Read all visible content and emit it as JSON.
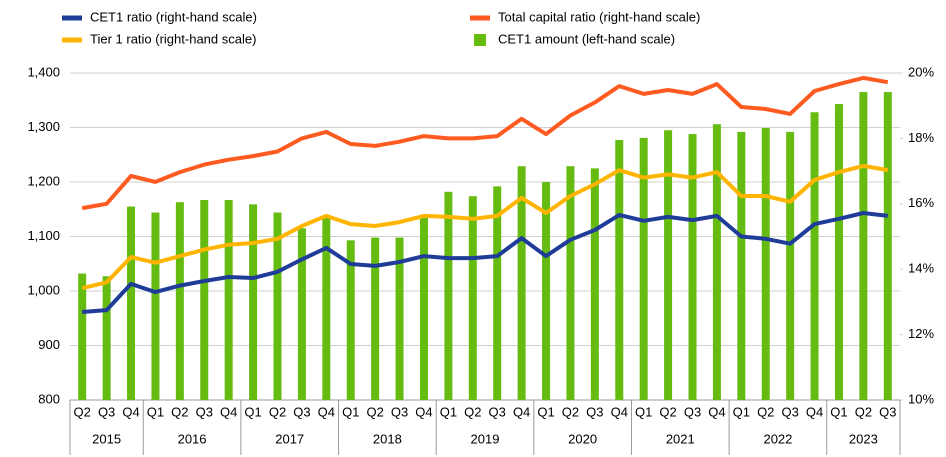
{
  "chart_data": {
    "type": "bar_line",
    "categories": [
      "Q2",
      "Q3",
      "Q4",
      "Q1",
      "Q2",
      "Q3",
      "Q4",
      "Q1",
      "Q2",
      "Q3",
      "Q4",
      "Q1",
      "Q2",
      "Q3",
      "Q4",
      "Q1",
      "Q2",
      "Q3",
      "Q4",
      "Q1",
      "Q2",
      "Q3",
      "Q4",
      "Q1",
      "Q2",
      "Q3",
      "Q4",
      "Q1",
      "Q2",
      "Q3",
      "Q4",
      "Q1",
      "Q2",
      "Q3"
    ],
    "years": [
      "2015",
      "2016",
      "2017",
      "2018",
      "2019",
      "2020",
      "2021",
      "2022",
      "2023"
    ],
    "series": [
      {
        "name": "CET1 ratio (right-hand scale)",
        "type": "line",
        "axis": "y2",
        "color": "#1f3c99",
        "values": [
          12.69,
          12.75,
          13.55,
          13.3,
          13.5,
          13.64,
          13.76,
          13.73,
          13.92,
          14.3,
          14.65,
          14.16,
          14.1,
          14.22,
          14.4,
          14.34,
          14.34,
          14.4,
          14.95,
          14.4,
          14.9,
          15.2,
          15.66,
          15.48,
          15.6,
          15.5,
          15.63,
          15.0,
          14.93,
          14.78,
          15.38,
          15.54,
          15.72,
          15.63
        ]
      },
      {
        "name": "Total capital ratio (right-hand scale)",
        "type": "line",
        "axis": "y2",
        "color": "#ff5a1f",
        "values": [
          15.87,
          16.0,
          16.85,
          16.67,
          16.97,
          17.2,
          17.35,
          17.46,
          17.6,
          18.0,
          18.2,
          17.83,
          17.77,
          17.9,
          18.07,
          18.0,
          18.0,
          18.07,
          18.6,
          18.13,
          18.7,
          19.1,
          19.6,
          19.36,
          19.48,
          19.36,
          19.66,
          18.96,
          18.9,
          18.75,
          19.45,
          19.66,
          19.85,
          19.72
        ]
      },
      {
        "name": "Tier 1 ratio (right-hand scale)",
        "type": "line",
        "axis": "y2",
        "color": "#ffb400",
        "values": [
          13.42,
          13.6,
          14.37,
          14.2,
          14.4,
          14.6,
          14.75,
          14.8,
          14.93,
          15.32,
          15.63,
          15.38,
          15.32,
          15.44,
          15.63,
          15.6,
          15.54,
          15.63,
          16.18,
          15.72,
          16.24,
          16.6,
          17.03,
          16.8,
          16.9,
          16.8,
          16.97,
          16.24,
          16.24,
          16.06,
          16.73,
          16.97,
          17.16,
          17.03
        ]
      },
      {
        "name": "CET1 amount (left-hand scale)",
        "type": "bar",
        "axis": "y",
        "color": "#66bb11",
        "values": [
          1032,
          1027,
          1155,
          1144,
          1163,
          1167,
          1167,
          1159,
          1144,
          1115,
          1137,
          1093,
          1098,
          1098,
          1140,
          1182,
          1174,
          1192,
          1229,
          1200,
          1229,
          1225,
          1277,
          1281,
          1295,
          1288,
          1306,
          1292,
          1299,
          1292,
          1328,
          1343,
          1365,
          1365
        ]
      }
    ],
    "ylim": [
      800,
      1400
    ],
    "yticks": [
      800,
      900,
      {
        "value": 1000,
        "label": "1,000"
      },
      {
        "value": 1100,
        "label": "1,100"
      },
      {
        "value": 1200,
        "label": "1,200"
      },
      {
        "value": 1300,
        "label": "1,300"
      },
      {
        "value": 1400,
        "label": "1,400"
      }
    ],
    "y2lim": [
      10,
      20
    ],
    "y2ticks": [
      {
        "value": 10,
        "label": "10%"
      },
      {
        "value": 12,
        "label": "12%"
      },
      {
        "value": 14,
        "label": "14%"
      },
      {
        "value": 16,
        "label": "16%"
      },
      {
        "value": 18,
        "label": "18%"
      },
      {
        "value": 20,
        "label": "20%"
      }
    ],
    "grid": true
  }
}
